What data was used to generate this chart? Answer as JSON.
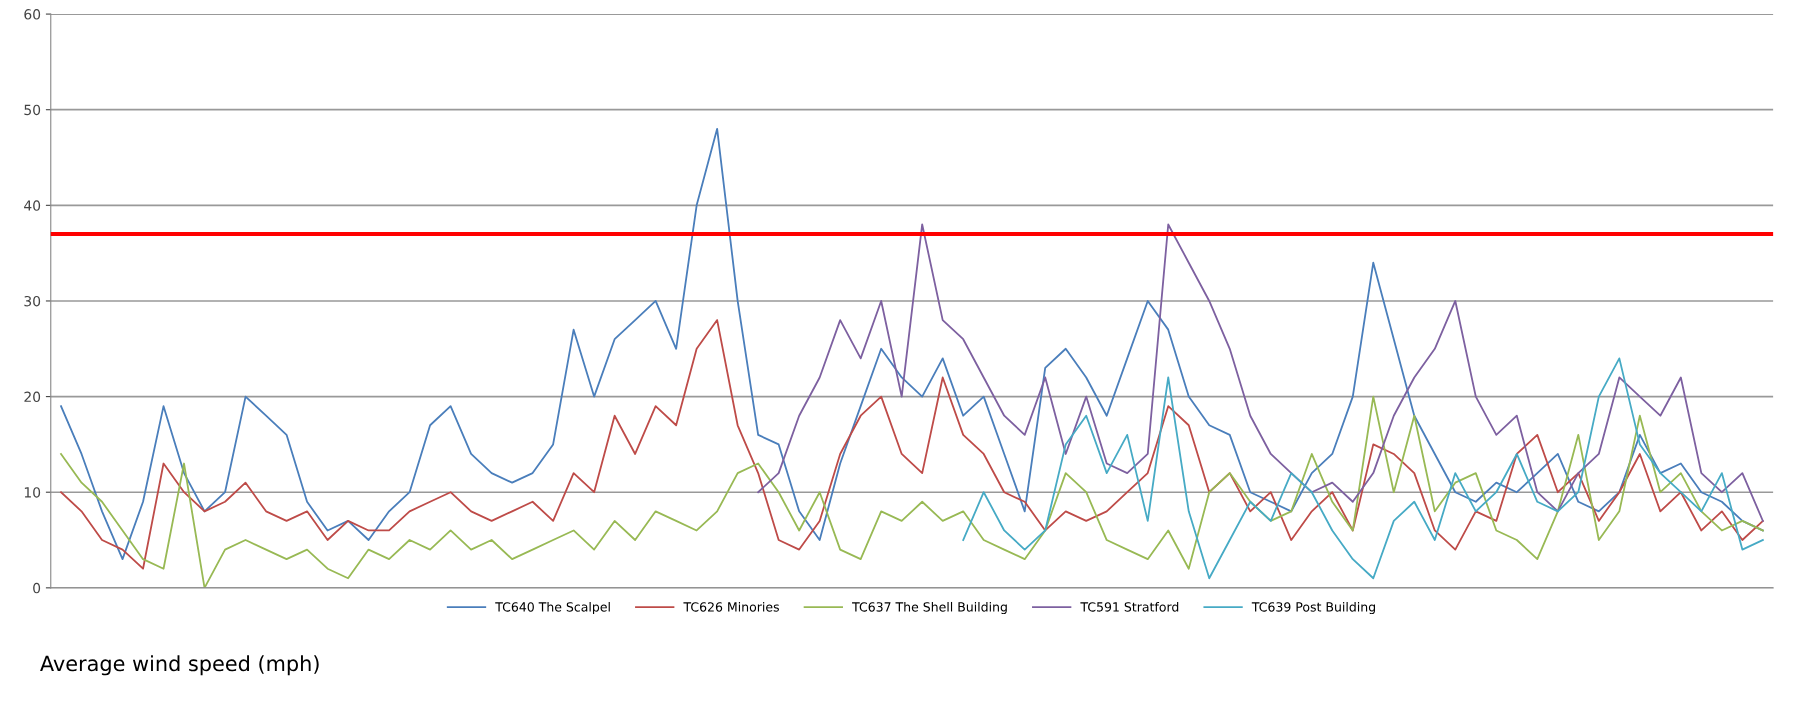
{
  "chart_data": {
    "type": "line",
    "categories": [
      null,
      null,
      null,
      null,
      null,
      null,
      null,
      null,
      null,
      null,
      null,
      null,
      null,
      null,
      null,
      null,
      null,
      null,
      null,
      null,
      null,
      null,
      null,
      null,
      null,
      null,
      null,
      null,
      null,
      null,
      null,
      null,
      null,
      null,
      null,
      null,
      null,
      null,
      null,
      null,
      null,
      null,
      null,
      null,
      null,
      null,
      null,
      null,
      null,
      null,
      null,
      null,
      null,
      null,
      null,
      null,
      null,
      null,
      null,
      null,
      null,
      null,
      null,
      null,
      null,
      null,
      null,
      null,
      null,
      null,
      null,
      null,
      null,
      null,
      null,
      null,
      null,
      null,
      null,
      null,
      null,
      null,
      null,
      null
    ],
    "series": [
      {
        "name": "TC640 The Scalpel",
        "color": "#4a7ebb",
        "values": [
          19,
          14,
          8,
          3,
          9,
          19,
          12,
          8,
          10,
          20,
          18,
          16,
          9,
          6,
          7,
          5,
          8,
          10,
          17,
          19,
          14,
          12,
          11,
          12,
          15,
          27,
          20,
          26,
          28,
          30,
          25,
          40,
          48,
          30,
          16,
          15,
          8,
          5,
          13,
          19,
          25,
          22,
          20,
          24,
          18,
          20,
          14,
          8,
          23,
          25,
          22,
          18,
          24,
          30,
          27,
          20,
          17,
          16,
          10,
          9,
          8,
          12,
          14,
          20,
          34,
          26,
          18,
          14,
          10,
          9,
          11,
          10,
          12,
          14,
          9,
          8,
          10,
          16,
          12,
          13,
          10,
          9,
          7,
          6
        ]
      },
      {
        "name": "TC626 Minories",
        "color": "#be4b48",
        "values": [
          10,
          8,
          5,
          4,
          2,
          13,
          10,
          8,
          9,
          11,
          8,
          7,
          8,
          5,
          7,
          6,
          6,
          8,
          9,
          10,
          8,
          7,
          8,
          9,
          7,
          12,
          10,
          18,
          14,
          19,
          17,
          25,
          28,
          17,
          12,
          5,
          4,
          7,
          14,
          18,
          20,
          14,
          12,
          22,
          16,
          14,
          10,
          9,
          6,
          8,
          7,
          8,
          10,
          12,
          19,
          17,
          10,
          12,
          8,
          10,
          5,
          8,
          10,
          6,
          15,
          14,
          12,
          6,
          4,
          8,
          7,
          14,
          16,
          10,
          12,
          7,
          10,
          14,
          8,
          10,
          6,
          8,
          5,
          7
        ]
      },
      {
        "name": "TC637 The Shell Building",
        "color": "#98b954",
        "values": [
          14,
          11,
          9,
          6,
          3,
          2,
          13,
          0,
          4,
          5,
          4,
          3,
          4,
          2,
          1,
          4,
          3,
          5,
          4,
          6,
          4,
          5,
          3,
          4,
          5,
          6,
          4,
          7,
          5,
          8,
          7,
          6,
          8,
          12,
          13,
          10,
          6,
          10,
          4,
          3,
          8,
          7,
          9,
          7,
          8,
          5,
          4,
          3,
          6,
          12,
          10,
          5,
          4,
          3,
          6,
          2,
          10,
          12,
          9,
          7,
          8,
          14,
          9,
          6,
          20,
          10,
          18,
          8,
          11,
          12,
          6,
          5,
          3,
          8,
          16,
          5,
          8,
          18,
          10,
          12,
          8,
          6,
          7,
          6
        ]
      },
      {
        "name": "TC591 Stratford",
        "color": "#7d60a0",
        "values": [
          null,
          null,
          null,
          null,
          null,
          null,
          null,
          null,
          null,
          null,
          null,
          null,
          null,
          null,
          null,
          null,
          null,
          null,
          null,
          null,
          null,
          null,
          null,
          null,
          null,
          null,
          null,
          null,
          null,
          null,
          null,
          null,
          null,
          null,
          10,
          12,
          18,
          22,
          28,
          24,
          30,
          20,
          38,
          28,
          26,
          22,
          18,
          16,
          22,
          14,
          20,
          13,
          12,
          14,
          38,
          34,
          30,
          25,
          18,
          14,
          12,
          10,
          11,
          9,
          12,
          18,
          22,
          25,
          30,
          20,
          16,
          18,
          10,
          8,
          12,
          14,
          22,
          20,
          18,
          22,
          12,
          10,
          12,
          7
        ]
      },
      {
        "name": "TC639 Post Building",
        "color": "#46aac5",
        "values": [
          null,
          null,
          null,
          null,
          null,
          null,
          null,
          null,
          null,
          null,
          null,
          null,
          null,
          null,
          null,
          null,
          null,
          null,
          null,
          null,
          null,
          null,
          null,
          null,
          null,
          null,
          null,
          null,
          null,
          null,
          null,
          null,
          null,
          null,
          null,
          null,
          null,
          null,
          null,
          null,
          null,
          null,
          null,
          null,
          5,
          10,
          6,
          4,
          6,
          15,
          18,
          12,
          16,
          7,
          22,
          8,
          1,
          5,
          9,
          7,
          12,
          10,
          6,
          3,
          1,
          7,
          9,
          5,
          12,
          8,
          10,
          14,
          9,
          8,
          10,
          20,
          24,
          15,
          12,
          10,
          8,
          12,
          4,
          5
        ]
      }
    ],
    "ylim": [
      0,
      60
    ],
    "yticks": [
      0,
      10,
      20,
      30,
      40,
      50,
      60
    ],
    "grid": "y",
    "tick_labels": "y",
    "legend": "bottom",
    "ref_lines": [
      {
        "axis": "y",
        "value": 37,
        "color": "#ff0000"
      }
    ],
    "annotations": [
      "Average wind speed (mph)"
    ]
  }
}
